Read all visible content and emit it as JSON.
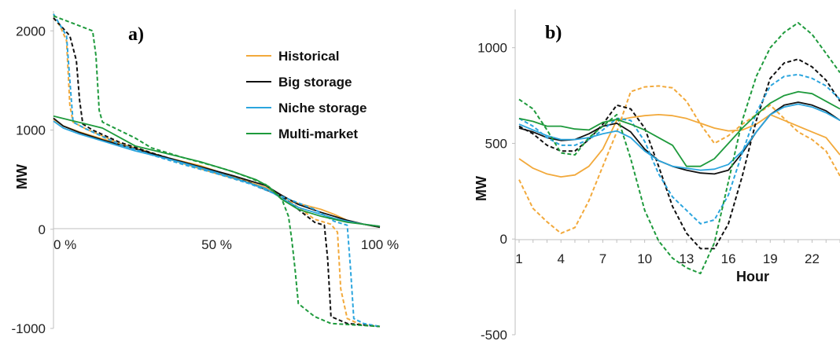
{
  "colors": {
    "Historical": "#F2A93B",
    "Big storage": "#111111",
    "Niche storage": "#2BA5DE",
    "Multi-market": "#1E9A3C"
  },
  "chart_data": [
    {
      "panel_label": "a)",
      "type": "line",
      "ylabel": "MW",
      "xlim": [
        0,
        100
      ],
      "ylim": [
        -1000,
        2200
      ],
      "x_ticks": [
        0,
        50,
        100
      ],
      "x_tick_labels": [
        "0 %",
        "50 %",
        "100 %"
      ],
      "y_ticks": [
        2000,
        1000,
        0,
        -1000
      ],
      "y_tick_labels": [
        "2000",
        "1000",
        "0",
        "-1000"
      ],
      "legend": [
        "Historical",
        "Big storage",
        "Niche storage",
        "Multi-market"
      ],
      "legend_position": "upper-right",
      "series": [
        {
          "name": "Historical",
          "style": "solid",
          "x": [
            0,
            3,
            8,
            15,
            25,
            35,
            45,
            55,
            65,
            70,
            75,
            82,
            86,
            90,
            95,
            100
          ],
          "y": [
            1110,
            1040,
            980,
            910,
            820,
            720,
            640,
            530,
            420,
            330,
            260,
            200,
            150,
            90,
            50,
            20
          ]
        },
        {
          "name": "Historical",
          "style": "dashed",
          "x": [
            0,
            2,
            4,
            5,
            6,
            10,
            20,
            30,
            40,
            50,
            60,
            70,
            80,
            85,
            87,
            88,
            90,
            94,
            100
          ],
          "y": [
            2130,
            2050,
            1900,
            1250,
            1080,
            1010,
            870,
            760,
            660,
            560,
            470,
            340,
            100,
            50,
            -30,
            -600,
            -900,
            -960,
            -980
          ]
        },
        {
          "name": "Big storage",
          "style": "solid",
          "x": [
            0,
            3,
            8,
            15,
            25,
            35,
            45,
            55,
            65,
            70,
            75,
            82,
            86,
            90,
            95,
            100
          ],
          "y": [
            1120,
            1040,
            975,
            900,
            810,
            720,
            630,
            540,
            440,
            340,
            250,
            170,
            130,
            90,
            50,
            20
          ]
        },
        {
          "name": "Big storage",
          "style": "dashed",
          "x": [
            0,
            2,
            5,
            7,
            8,
            9,
            12,
            20,
            30,
            40,
            50,
            60,
            70,
            80,
            83,
            84,
            85,
            90,
            100
          ],
          "y": [
            2130,
            2060,
            1950,
            1700,
            1300,
            1060,
            1000,
            880,
            770,
            670,
            570,
            470,
            330,
            70,
            40,
            -300,
            -880,
            -950,
            -980
          ]
        },
        {
          "name": "Niche storage",
          "style": "solid",
          "x": [
            0,
            3,
            8,
            15,
            25,
            35,
            45,
            55,
            65,
            70,
            75,
            82,
            86,
            90,
            95,
            100
          ],
          "y": [
            1090,
            1020,
            960,
            890,
            790,
            710,
            620,
            520,
            410,
            310,
            220,
            150,
            110,
            80,
            50,
            30
          ]
        },
        {
          "name": "Niche storage",
          "style": "dashed",
          "x": [
            0,
            2,
            4,
            5,
            6,
            10,
            20,
            30,
            40,
            50,
            60,
            70,
            80,
            86,
            90,
            91,
            92,
            95,
            100
          ],
          "y": [
            2170,
            2060,
            1950,
            1500,
            1080,
            1010,
            860,
            750,
            650,
            560,
            460,
            330,
            200,
            80,
            40,
            -400,
            -900,
            -950,
            -980
          ]
        },
        {
          "name": "Multi-market",
          "style": "solid",
          "x": [
            0,
            5,
            10,
            15,
            20,
            25,
            35,
            45,
            55,
            62,
            66,
            70,
            75,
            82,
            90,
            95,
            100
          ],
          "y": [
            1140,
            1100,
            1060,
            1020,
            930,
            840,
            760,
            680,
            580,
            500,
            430,
            300,
            200,
            130,
            70,
            50,
            30
          ]
        },
        {
          "name": "Multi-market",
          "style": "dashed",
          "x": [
            0,
            4,
            8,
            12,
            13,
            14,
            15,
            20,
            25,
            30,
            40,
            50,
            55,
            60,
            65,
            70,
            72,
            73,
            74,
            75,
            80,
            85,
            90,
            95,
            100
          ],
          "y": [
            2150,
            2100,
            2050,
            2000,
            1750,
            1200,
            1080,
            1000,
            920,
            820,
            720,
            630,
            580,
            520,
            450,
            300,
            130,
            -100,
            -400,
            -750,
            -880,
            -950,
            -960,
            -970,
            -980
          ]
        }
      ]
    },
    {
      "panel_label": "b)",
      "type": "line",
      "xlabel": "Hour",
      "ylabel": "MW",
      "xlim": [
        1,
        24
      ],
      "ylim": [
        -500,
        1200
      ],
      "x_ticks": [
        1,
        4,
        7,
        10,
        13,
        16,
        19,
        22
      ],
      "x_tick_labels": [
        "1",
        "4",
        "7",
        "10",
        "13",
        "16",
        "19",
        "22"
      ],
      "y_ticks": [
        1000,
        500,
        0,
        -500
      ],
      "y_tick_labels": [
        "1000",
        "500",
        "0",
        "-500"
      ],
      "series": [
        {
          "name": "Historical",
          "style": "solid",
          "x": [
            1,
            2,
            3,
            4,
            5,
            6,
            7,
            8,
            9,
            10,
            11,
            12,
            13,
            14,
            15,
            16,
            17,
            18,
            19,
            20,
            21,
            22,
            23,
            24
          ],
          "y": [
            420,
            370,
            340,
            325,
            335,
            380,
            470,
            620,
            635,
            645,
            650,
            645,
            630,
            605,
            580,
            565,
            570,
            600,
            650,
            620,
            590,
            560,
            530,
            440
          ]
        },
        {
          "name": "Historical",
          "style": "dashed",
          "x": [
            1,
            2,
            3,
            4,
            5,
            6,
            7,
            8,
            9,
            10,
            11,
            12,
            13,
            14,
            15,
            16,
            17,
            18,
            19,
            20,
            21,
            22,
            23,
            24
          ],
          "y": [
            310,
            160,
            90,
            30,
            60,
            200,
            380,
            560,
            770,
            795,
            800,
            790,
            720,
            600,
            500,
            540,
            600,
            650,
            700,
            630,
            560,
            520,
            460,
            330
          ]
        },
        {
          "name": "Big storage",
          "style": "solid",
          "x": [
            1,
            2,
            3,
            4,
            5,
            6,
            7,
            8,
            9,
            10,
            11,
            12,
            13,
            14,
            15,
            16,
            17,
            18,
            19,
            20,
            21,
            22,
            23,
            24
          ],
          "y": [
            580,
            560,
            530,
            515,
            520,
            550,
            590,
            605,
            560,
            470,
            410,
            380,
            360,
            345,
            340,
            360,
            450,
            560,
            650,
            700,
            715,
            700,
            670,
            620
          ]
        },
        {
          "name": "Big storage",
          "style": "dashed",
          "x": [
            1,
            2,
            3,
            4,
            5,
            6,
            7,
            8,
            9,
            10,
            11,
            12,
            13,
            14,
            15,
            16,
            17,
            18,
            19,
            20,
            21,
            22,
            23,
            24
          ],
          "y": [
            590,
            550,
            490,
            460,
            460,
            520,
            600,
            700,
            680,
            580,
            380,
            170,
            30,
            -50,
            -50,
            80,
            330,
            620,
            840,
            920,
            940,
            900,
            830,
            720
          ]
        },
        {
          "name": "Niche storage",
          "style": "solid",
          "x": [
            1,
            2,
            3,
            4,
            5,
            6,
            7,
            8,
            9,
            10,
            11,
            12,
            13,
            14,
            15,
            16,
            17,
            18,
            19,
            20,
            21,
            22,
            23,
            24
          ],
          "y": [
            600,
            570,
            540,
            520,
            520,
            530,
            550,
            565,
            530,
            460,
            410,
            380,
            370,
            360,
            365,
            390,
            460,
            560,
            650,
            690,
            705,
            690,
            660,
            620
          ]
        },
        {
          "name": "Niche storage",
          "style": "dashed",
          "x": [
            1,
            2,
            3,
            4,
            5,
            6,
            7,
            8,
            9,
            10,
            11,
            12,
            13,
            14,
            15,
            16,
            17,
            18,
            19,
            20,
            21,
            22,
            23,
            24
          ],
          "y": [
            630,
            590,
            530,
            490,
            490,
            520,
            570,
            630,
            620,
            510,
            340,
            220,
            150,
            80,
            100,
            230,
            450,
            660,
            800,
            850,
            860,
            840,
            800,
            730
          ]
        },
        {
          "name": "Multi-market",
          "style": "solid",
          "x": [
            1,
            2,
            3,
            4,
            5,
            6,
            7,
            8,
            9,
            10,
            11,
            12,
            13,
            14,
            15,
            16,
            17,
            18,
            19,
            20,
            21,
            22,
            23,
            24
          ],
          "y": [
            630,
            615,
            590,
            590,
            575,
            570,
            610,
            625,
            600,
            570,
            530,
            490,
            380,
            380,
            420,
            500,
            580,
            650,
            710,
            750,
            770,
            760,
            720,
            680
          ]
        },
        {
          "name": "Multi-market",
          "style": "dashed",
          "x": [
            1,
            2,
            3,
            4,
            5,
            6,
            7,
            8,
            9,
            10,
            11,
            12,
            13,
            14,
            15,
            16,
            17,
            18,
            19,
            20,
            21,
            22,
            23,
            24
          ],
          "y": [
            730,
            680,
            570,
            450,
            440,
            530,
            590,
            650,
            420,
            150,
            -10,
            -100,
            -150,
            -180,
            -20,
            300,
            620,
            850,
            1000,
            1080,
            1130,
            1070,
            970,
            870
          ]
        }
      ]
    }
  ]
}
